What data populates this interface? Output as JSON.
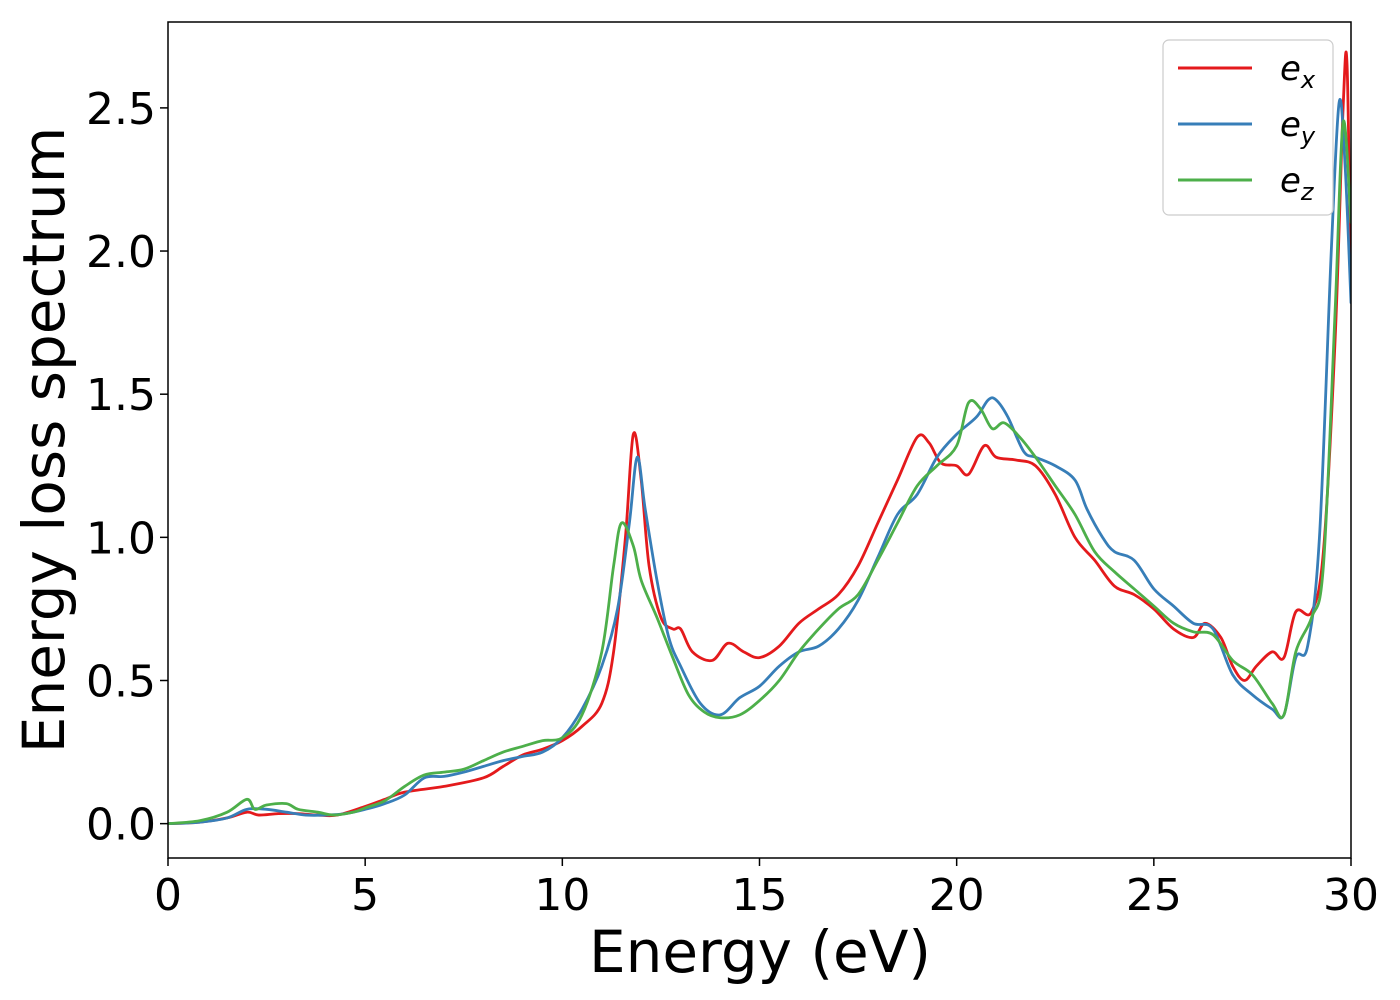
{
  "chart_data": {
    "type": "line",
    "title": "",
    "xlabel": "Energy (eV)",
    "ylabel": "Energy loss spectrum",
    "xlim": [
      0,
      30
    ],
    "ylim": [
      -0.12,
      2.8
    ],
    "x_ticks": [
      0,
      5,
      10,
      15,
      20,
      25,
      30
    ],
    "x_tick_labels": [
      "0",
      "5",
      "10",
      "15",
      "20",
      "25",
      "30"
    ],
    "y_ticks": [
      0.0,
      0.5,
      1.0,
      1.5,
      2.0,
      2.5
    ],
    "y_tick_labels": [
      "0.0",
      "0.5",
      "1.0",
      "1.5",
      "2.0",
      "2.5"
    ],
    "grid": false,
    "legend_position": "top-right",
    "series": [
      {
        "name": "e_x",
        "label_base": "e",
        "label_sub": "x",
        "color": "#e41a1c",
        "points": [
          [
            0,
            0
          ],
          [
            0.8,
            0.005
          ],
          [
            1.5,
            0.02
          ],
          [
            2.0,
            0.04
          ],
          [
            2.3,
            0.03
          ],
          [
            2.8,
            0.035
          ],
          [
            3.3,
            0.035
          ],
          [
            3.8,
            0.03
          ],
          [
            4.3,
            0.03
          ],
          [
            5.0,
            0.06
          ],
          [
            5.5,
            0.085
          ],
          [
            6.0,
            0.11
          ],
          [
            7.0,
            0.13
          ],
          [
            8.0,
            0.16
          ],
          [
            8.5,
            0.2
          ],
          [
            9.0,
            0.24
          ],
          [
            9.5,
            0.26
          ],
          [
            10.0,
            0.29
          ],
          [
            10.5,
            0.34
          ],
          [
            11.0,
            0.42
          ],
          [
            11.3,
            0.6
          ],
          [
            11.6,
            1.0
          ],
          [
            11.8,
            1.36
          ],
          [
            12.0,
            1.2
          ],
          [
            12.2,
            0.9
          ],
          [
            12.5,
            0.72
          ],
          [
            12.8,
            0.68
          ],
          [
            13.0,
            0.68
          ],
          [
            13.3,
            0.6
          ],
          [
            13.8,
            0.57
          ],
          [
            14.2,
            0.63
          ],
          [
            14.6,
            0.6
          ],
          [
            15.0,
            0.58
          ],
          [
            15.5,
            0.62
          ],
          [
            16.0,
            0.7
          ],
          [
            16.5,
            0.75
          ],
          [
            17.0,
            0.8
          ],
          [
            17.5,
            0.9
          ],
          [
            18.0,
            1.05
          ],
          [
            18.5,
            1.2
          ],
          [
            19.0,
            1.35
          ],
          [
            19.3,
            1.33
          ],
          [
            19.6,
            1.26
          ],
          [
            20.0,
            1.25
          ],
          [
            20.3,
            1.22
          ],
          [
            20.7,
            1.32
          ],
          [
            21.0,
            1.28
          ],
          [
            21.5,
            1.27
          ],
          [
            22.0,
            1.25
          ],
          [
            22.5,
            1.15
          ],
          [
            23.0,
            1.0
          ],
          [
            23.5,
            0.92
          ],
          [
            24.0,
            0.83
          ],
          [
            24.5,
            0.8
          ],
          [
            25.0,
            0.75
          ],
          [
            25.5,
            0.68
          ],
          [
            26.0,
            0.65
          ],
          [
            26.3,
            0.7
          ],
          [
            26.7,
            0.65
          ],
          [
            27.0,
            0.55
          ],
          [
            27.3,
            0.5
          ],
          [
            27.6,
            0.55
          ],
          [
            28.0,
            0.6
          ],
          [
            28.3,
            0.58
          ],
          [
            28.6,
            0.74
          ],
          [
            29.0,
            0.74
          ],
          [
            29.3,
            0.95
          ],
          [
            29.6,
            1.7
          ],
          [
            29.8,
            2.5
          ],
          [
            29.9,
            2.65
          ],
          [
            30.0,
            1.85
          ]
        ]
      },
      {
        "name": "e_y",
        "label_base": "e",
        "label_sub": "y",
        "color": "#377eb8",
        "points": [
          [
            0,
            0
          ],
          [
            0.8,
            0.005
          ],
          [
            1.5,
            0.02
          ],
          [
            2.0,
            0.05
          ],
          [
            2.5,
            0.05
          ],
          [
            3.0,
            0.04
          ],
          [
            3.5,
            0.03
          ],
          [
            4.0,
            0.03
          ],
          [
            4.5,
            0.035
          ],
          [
            5.0,
            0.05
          ],
          [
            5.5,
            0.07
          ],
          [
            6.0,
            0.1
          ],
          [
            6.5,
            0.16
          ],
          [
            7.0,
            0.165
          ],
          [
            7.5,
            0.18
          ],
          [
            8.0,
            0.2
          ],
          [
            8.5,
            0.22
          ],
          [
            9.0,
            0.235
          ],
          [
            9.5,
            0.25
          ],
          [
            10.0,
            0.3
          ],
          [
            10.5,
            0.4
          ],
          [
            11.0,
            0.55
          ],
          [
            11.4,
            0.75
          ],
          [
            11.7,
            1.05
          ],
          [
            11.9,
            1.28
          ],
          [
            12.1,
            1.1
          ],
          [
            12.4,
            0.85
          ],
          [
            12.7,
            0.65
          ],
          [
            13.0,
            0.55
          ],
          [
            13.5,
            0.42
          ],
          [
            14.0,
            0.38
          ],
          [
            14.5,
            0.44
          ],
          [
            15.0,
            0.48
          ],
          [
            15.5,
            0.55
          ],
          [
            16.0,
            0.6
          ],
          [
            16.5,
            0.62
          ],
          [
            17.0,
            0.68
          ],
          [
            17.5,
            0.78
          ],
          [
            18.0,
            0.93
          ],
          [
            18.5,
            1.08
          ],
          [
            19.0,
            1.15
          ],
          [
            19.5,
            1.28
          ],
          [
            20.0,
            1.36
          ],
          [
            20.5,
            1.42
          ],
          [
            20.8,
            1.48
          ],
          [
            21.0,
            1.48
          ],
          [
            21.3,
            1.42
          ],
          [
            21.7,
            1.3
          ],
          [
            22.0,
            1.28
          ],
          [
            22.5,
            1.25
          ],
          [
            23.0,
            1.2
          ],
          [
            23.3,
            1.1
          ],
          [
            23.7,
            1.0
          ],
          [
            24.0,
            0.95
          ],
          [
            24.5,
            0.92
          ],
          [
            25.0,
            0.82
          ],
          [
            25.5,
            0.76
          ],
          [
            26.0,
            0.7
          ],
          [
            26.5,
            0.68
          ],
          [
            27.0,
            0.52
          ],
          [
            27.5,
            0.45
          ],
          [
            28.0,
            0.4
          ],
          [
            28.3,
            0.38
          ],
          [
            28.6,
            0.58
          ],
          [
            28.9,
            0.62
          ],
          [
            29.2,
            1.0
          ],
          [
            29.5,
            2.0
          ],
          [
            29.7,
            2.52
          ],
          [
            29.85,
            2.3
          ],
          [
            30.0,
            1.82
          ]
        ]
      },
      {
        "name": "e_z",
        "label_base": "e",
        "label_sub": "z",
        "color": "#4daf4a",
        "points": [
          [
            0,
            0
          ],
          [
            0.8,
            0.01
          ],
          [
            1.5,
            0.04
          ],
          [
            2.0,
            0.085
          ],
          [
            2.2,
            0.05
          ],
          [
            2.5,
            0.065
          ],
          [
            3.0,
            0.07
          ],
          [
            3.3,
            0.05
          ],
          [
            3.8,
            0.04
          ],
          [
            4.2,
            0.03
          ],
          [
            4.7,
            0.04
          ],
          [
            5.0,
            0.055
          ],
          [
            5.5,
            0.08
          ],
          [
            6.0,
            0.13
          ],
          [
            6.5,
            0.17
          ],
          [
            7.0,
            0.18
          ],
          [
            7.5,
            0.19
          ],
          [
            8.0,
            0.22
          ],
          [
            8.5,
            0.25
          ],
          [
            9.0,
            0.27
          ],
          [
            9.5,
            0.29
          ],
          [
            10.0,
            0.3
          ],
          [
            10.5,
            0.38
          ],
          [
            11.0,
            0.6
          ],
          [
            11.3,
            0.9
          ],
          [
            11.5,
            1.05
          ],
          [
            11.8,
            0.97
          ],
          [
            12.0,
            0.85
          ],
          [
            12.4,
            0.72
          ],
          [
            12.8,
            0.58
          ],
          [
            13.2,
            0.45
          ],
          [
            13.6,
            0.39
          ],
          [
            14.0,
            0.37
          ],
          [
            14.5,
            0.38
          ],
          [
            15.0,
            0.43
          ],
          [
            15.5,
            0.5
          ],
          [
            16.0,
            0.6
          ],
          [
            16.5,
            0.68
          ],
          [
            17.0,
            0.75
          ],
          [
            17.5,
            0.8
          ],
          [
            18.0,
            0.92
          ],
          [
            18.5,
            1.05
          ],
          [
            19.0,
            1.18
          ],
          [
            19.5,
            1.25
          ],
          [
            20.0,
            1.32
          ],
          [
            20.3,
            1.47
          ],
          [
            20.6,
            1.45
          ],
          [
            20.9,
            1.38
          ],
          [
            21.2,
            1.4
          ],
          [
            21.6,
            1.35
          ],
          [
            22.0,
            1.28
          ],
          [
            22.5,
            1.18
          ],
          [
            23.0,
            1.08
          ],
          [
            23.5,
            0.95
          ],
          [
            24.0,
            0.88
          ],
          [
            24.5,
            0.82
          ],
          [
            25.0,
            0.76
          ],
          [
            25.5,
            0.7
          ],
          [
            26.0,
            0.67
          ],
          [
            26.5,
            0.66
          ],
          [
            27.0,
            0.57
          ],
          [
            27.5,
            0.52
          ],
          [
            28.0,
            0.42
          ],
          [
            28.3,
            0.38
          ],
          [
            28.6,
            0.6
          ],
          [
            29.0,
            0.72
          ],
          [
            29.3,
            0.9
          ],
          [
            29.6,
            1.8
          ],
          [
            29.8,
            2.45
          ],
          [
            30.0,
            2.1
          ]
        ]
      }
    ]
  }
}
